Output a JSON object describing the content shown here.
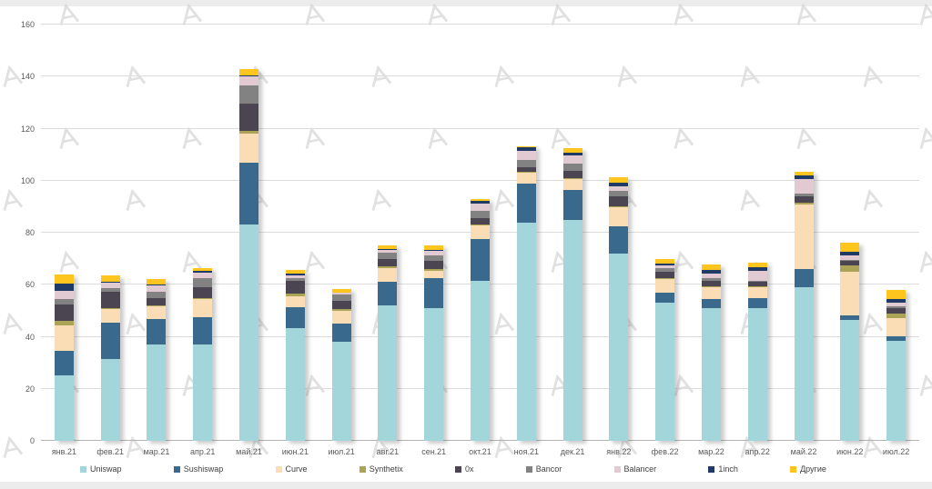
{
  "watermark": {
    "glyph": "forklog-a-mark",
    "color": "#c9c9c9"
  },
  "axis_colors": {
    "grid": "#dcdcdc",
    "baseline": "#b3b3b3",
    "tick_text": "#595959"
  },
  "chart_data": {
    "type": "bar",
    "stacked": true,
    "title": "",
    "xlabel": "",
    "ylabel": "",
    "ylim": [
      0,
      160
    ],
    "y_ticks": [
      0,
      20,
      40,
      60,
      80,
      100,
      120,
      140,
      160
    ],
    "grid": true,
    "legend_position": "bottom",
    "categories": [
      "янв.21",
      "фев.21",
      "мар.21",
      "апр.21",
      "май.21",
      "июн.21",
      "июл.21",
      "авг.21",
      "сен.21",
      "окт.21",
      "ноя.21",
      "дек.21",
      "янв.22",
      "фев.22",
      "мар.22",
      "апр.22",
      "май.22",
      "июн.22",
      "июл.22"
    ],
    "series": [
      {
        "name": "Uniswap",
        "color": "#A2D6DA",
        "values": [
          25,
          31.5,
          37,
          37,
          83,
          43.5,
          38,
          52,
          51,
          61.5,
          84,
          85,
          72,
          53,
          51,
          51,
          59,
          46.5,
          38.5
        ]
      },
      {
        "name": "Sushiswap",
        "color": "#39698C",
        "values": [
          9.5,
          14,
          10,
          10.5,
          24,
          8,
          7,
          9,
          11.5,
          16,
          15,
          11.5,
          10.5,
          4,
          3.5,
          4,
          7,
          1.7,
          1.8
        ]
      },
      {
        "name": "Curve",
        "color": "#FADCB5",
        "values": [
          10,
          5.3,
          4.7,
          7,
          11,
          4.2,
          5,
          5.3,
          2.8,
          5.3,
          4.1,
          4.1,
          7.2,
          5.2,
          4.7,
          4.1,
          25,
          16.7,
          7
        ]
      },
      {
        "name": "Synthetix",
        "color": "#ABA356",
        "values": [
          1.5,
          0.3,
          0.3,
          0.3,
          1,
          1.1,
          0.7,
          0.7,
          0.7,
          0.3,
          0.3,
          0.3,
          0.3,
          0.3,
          0.3,
          0.3,
          0.5,
          2.4,
          1.7
        ]
      },
      {
        "name": "0x",
        "color": "#4A4551",
        "values": [
          6.5,
          6.3,
          2.9,
          4.1,
          10.5,
          4.9,
          3.1,
          2.8,
          3.1,
          2.4,
          1.8,
          2.9,
          3.9,
          2.4,
          1.9,
          1.7,
          2.5,
          1.7,
          2.1
        ]
      },
      {
        "name": "Bancor",
        "color": "#828282",
        "values": [
          2,
          1.4,
          2.3,
          3.5,
          7,
          1,
          2.5,
          2.4,
          2.1,
          2.8,
          2.9,
          2.9,
          2.3,
          1.4,
          1,
          0.5,
          1,
          0.5,
          0.5
        ]
      },
      {
        "name": "Balancer",
        "color": "#E2CAD2",
        "values": [
          3,
          2.1,
          2.6,
          2.3,
          3.5,
          1,
          0.5,
          1.1,
          1.8,
          2.8,
          3.5,
          3,
          1.5,
          1.3,
          1.7,
          3.8,
          5.5,
          1.8,
          1.4
        ]
      },
      {
        "name": "1inch",
        "color": "#1F3A64",
        "values": [
          3,
          0.3,
          0.3,
          0.5,
          0.5,
          0.5,
          0.3,
          0.3,
          0.5,
          1.1,
          1.4,
          1.1,
          1.4,
          0.5,
          1.5,
          1.3,
          1.5,
          1.5,
          1.4
        ]
      },
      {
        "name": "Другие",
        "color": "#FFC51F",
        "values": [
          3.5,
          2.5,
          2.1,
          1.2,
          2.5,
          1.5,
          1.1,
          1.4,
          1.7,
          0.7,
          0.3,
          1.8,
          2.1,
          1.7,
          2.1,
          1.9,
          1.5,
          3.5,
          3.5
        ]
      }
    ]
  }
}
